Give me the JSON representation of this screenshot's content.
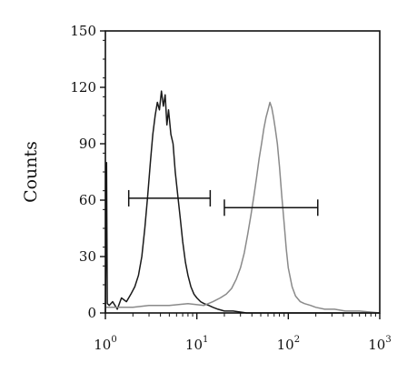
{
  "chart_data": {
    "type": "line",
    "ylabel": "Counts",
    "xlabel": "",
    "xscale": "log",
    "xlim": [
      1,
      1000
    ],
    "ylim": [
      0,
      150
    ],
    "grid": false,
    "y_ticks": [
      0,
      30,
      60,
      90,
      120,
      150
    ],
    "x_ticks": [
      {
        "value": 1,
        "base": "10",
        "exp": "0"
      },
      {
        "value": 10,
        "base": "10",
        "exp": "1"
      },
      {
        "value": 100,
        "base": "10",
        "exp": "2"
      },
      {
        "value": 1000,
        "base": "10",
        "exp": "3"
      }
    ],
    "series": [
      {
        "color": "#1a1a1a",
        "x": [
          1.0,
          1.03,
          1.05,
          1.1,
          1.2,
          1.35,
          1.5,
          1.7,
          1.9,
          2.1,
          2.3,
          2.5,
          2.7,
          2.9,
          3.1,
          3.3,
          3.5,
          3.7,
          3.9,
          4.1,
          4.3,
          4.5,
          4.7,
          4.9,
          5.2,
          5.5,
          5.8,
          6.2,
          6.6,
          7.0,
          7.5,
          8.0,
          8.6,
          9.3,
          10.0,
          11.0,
          12.0,
          13.5,
          15.0,
          17.0,
          20.0,
          25.0,
          35.0,
          60.0,
          100.0,
          200.0,
          400.0,
          1000.0
        ],
        "values": [
          0,
          80,
          5,
          4,
          6,
          2,
          8,
          6,
          10,
          14,
          20,
          30,
          45,
          62,
          80,
          95,
          105,
          112,
          108,
          118,
          110,
          116,
          100,
          108,
          95,
          90,
          75,
          62,
          50,
          38,
          27,
          20,
          14,
          10,
          8,
          6,
          5,
          4,
          3,
          2,
          1,
          1,
          0,
          0,
          0,
          0,
          0,
          0
        ]
      },
      {
        "color": "#8a8a8a",
        "x": [
          1.0,
          2.0,
          3.0,
          5.0,
          8.0,
          12.0,
          15.0,
          18.0,
          21.0,
          24.0,
          27.0,
          30.0,
          33.0,
          36.0,
          39.0,
          42.0,
          45.0,
          48.0,
          51.0,
          54.0,
          57.0,
          60.0,
          63.0,
          66.0,
          69.0,
          72.0,
          76.0,
          80.0,
          85.0,
          90.0,
          95.0,
          100.0,
          110.0,
          120.0,
          135.0,
          150.0,
          175.0,
          200.0,
          250.0,
          320.0,
          420.0,
          600.0,
          1000.0
        ],
        "values": [
          3,
          3,
          4,
          4,
          5,
          4,
          6,
          8,
          10,
          13,
          18,
          24,
          32,
          42,
          52,
          62,
          72,
          82,
          90,
          98,
          104,
          108,
          112,
          109,
          104,
          98,
          90,
          78,
          62,
          48,
          34,
          24,
          14,
          9,
          6,
          5,
          4,
          3,
          2,
          2,
          1,
          1,
          0
        ]
      }
    ],
    "gates": [
      {
        "x_start": 1.8,
        "x_end": 14.0,
        "y": 61,
        "color": "#111111"
      },
      {
        "x_start": 20.0,
        "x_end": 210.0,
        "y": 56,
        "color": "#111111"
      }
    ]
  }
}
